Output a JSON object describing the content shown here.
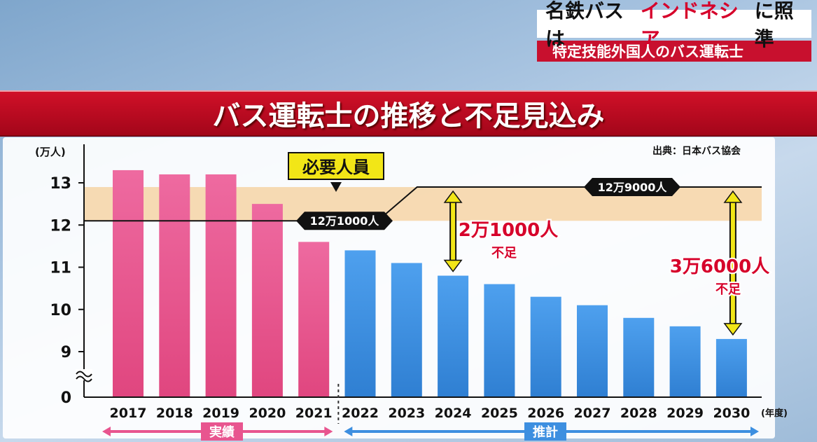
{
  "header": {
    "title_parts": [
      "名鉄バスは",
      "インドネシア",
      "に照準"
    ],
    "subtitle": "特定技能外国人のバス運転士"
  },
  "banner": {
    "title": "バス運転士の推移と不足見込み"
  },
  "chart_data": {
    "type": "bar",
    "title": "バス運転士の推移と不足見込み",
    "ylabel": "(万人)",
    "xlabel": "(年度)",
    "source": "出典：日本バス協会",
    "ylim": [
      8.6,
      13.6
    ],
    "y_ticks": [
      "0",
      "9",
      "10",
      "11",
      "12",
      "13"
    ],
    "axis_break": true,
    "categories": [
      "2017",
      "2018",
      "2019",
      "2020",
      "2021",
      "2022",
      "2023",
      "2024",
      "2025",
      "2026",
      "2027",
      "2028",
      "2029",
      "2030"
    ],
    "values": [
      13.3,
      13.2,
      13.2,
      12.5,
      11.6,
      11.4,
      11.1,
      10.8,
      10.6,
      10.3,
      10.1,
      9.8,
      9.6,
      9.3
    ],
    "groups": [
      {
        "label": "実績",
        "from": "2017",
        "to": "2021",
        "color": "#e8558f"
      },
      {
        "label": "推計",
        "from": "2022",
        "to": "2030",
        "color": "#3d8fe0"
      }
    ],
    "required_line": {
      "label": "必要人員",
      "segments": [
        {
          "from": "2017",
          "to": "2022",
          "value": 12.1,
          "label": "12万1000人"
        },
        {
          "from": "2023",
          "to": "2030",
          "value": 12.9,
          "label": "12万9000人"
        }
      ],
      "band": [
        12.1,
        12.9
      ]
    },
    "annotations": [
      {
        "year": "2024",
        "top": 12.9,
        "bottom": 10.8,
        "text": "2万1000人",
        "sub": "不足"
      },
      {
        "year": "2030",
        "top": 12.9,
        "bottom": 9.3,
        "text": "3万6000人",
        "sub": "不足"
      }
    ],
    "colors": {
      "actual": "#e8558f",
      "forecast": "#3d8fe0",
      "band": "#f6d4a6",
      "arrow": "#f2e617",
      "annotation": "#d6002a"
    }
  }
}
